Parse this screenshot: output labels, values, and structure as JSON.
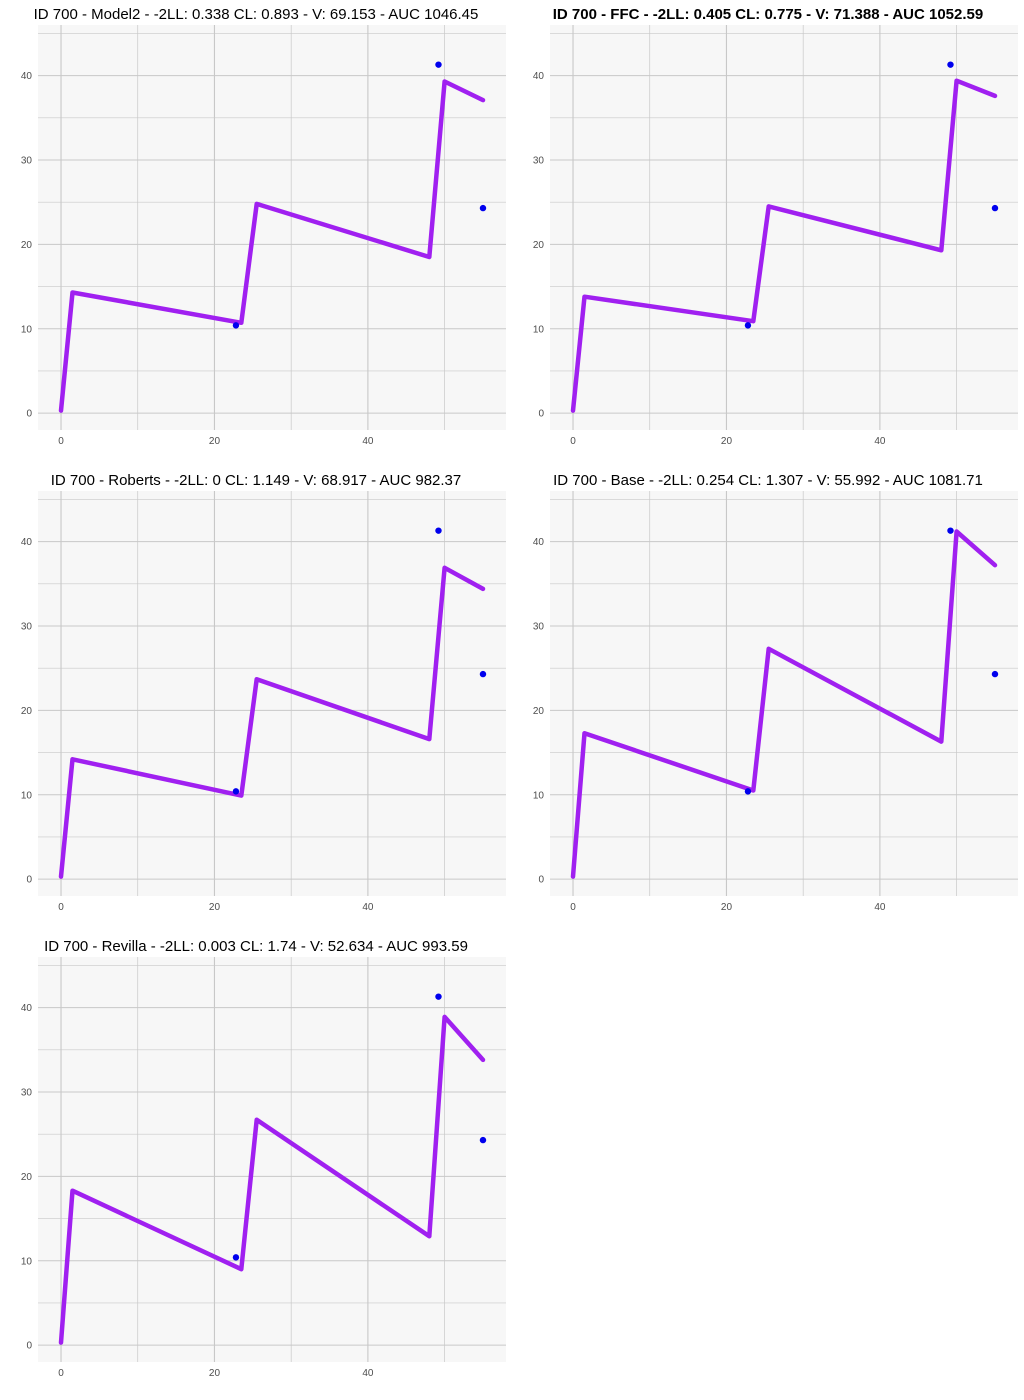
{
  "figure": {
    "background": "#ffffff",
    "panel_background": "#f7f7f7",
    "grid_color": "#c8c8c8",
    "line_color": "#a020f0",
    "point_color": "#0000ee"
  },
  "chart_data": [
    {
      "type": "line",
      "title": "ID 700 - Model2 - -2LL: 0.338 CL: 0.893 - V: 69.153 - AUC 1046.45",
      "title_bold": false,
      "xlim": [
        -3,
        58
      ],
      "ylim": [
        -2,
        46
      ],
      "x_ticks": [
        0,
        20,
        40
      ],
      "y_ticks": [
        0,
        10,
        20,
        30,
        40
      ],
      "prediction": {
        "x": [
          0,
          1.5,
          23.5,
          25.5,
          48,
          50,
          55
        ],
        "y": [
          0.3,
          14.3,
          10.7,
          24.8,
          18.5,
          39.3,
          37.1
        ]
      },
      "observations": {
        "x": [
          22.8,
          49.2,
          55
        ],
        "y": [
          10.4,
          41.3,
          24.3
        ]
      }
    },
    {
      "type": "line",
      "title": "ID 700 - FFC - -2LL: 0.405 CL: 0.775 - V: 71.388 - AUC 1052.59",
      "title_bold": true,
      "xlim": [
        -3,
        58
      ],
      "ylim": [
        -2,
        46
      ],
      "x_ticks": [
        0,
        20,
        40
      ],
      "y_ticks": [
        0,
        10,
        20,
        30,
        40
      ],
      "prediction": {
        "x": [
          0,
          1.5,
          23.5,
          25.5,
          48,
          50,
          55
        ],
        "y": [
          0.3,
          13.8,
          10.9,
          24.5,
          19.3,
          39.4,
          37.6
        ]
      },
      "observations": {
        "x": [
          22.8,
          49.2,
          55
        ],
        "y": [
          10.4,
          41.3,
          24.3
        ]
      }
    },
    {
      "type": "line",
      "title": "ID 700 - Roberts - -2LL: 0 CL: 1.149 - V: 68.917 - AUC 982.37",
      "title_bold": false,
      "xlim": [
        -3,
        58
      ],
      "ylim": [
        -2,
        46
      ],
      "x_ticks": [
        0,
        20,
        40
      ],
      "y_ticks": [
        0,
        10,
        20,
        30,
        40
      ],
      "prediction": {
        "x": [
          0,
          1.5,
          23.5,
          25.5,
          48,
          50,
          55
        ],
        "y": [
          0.3,
          14.2,
          9.9,
          23.7,
          16.6,
          36.9,
          34.4
        ]
      },
      "observations": {
        "x": [
          22.8,
          49.2,
          55
        ],
        "y": [
          10.4,
          41.3,
          24.3
        ]
      }
    },
    {
      "type": "line",
      "title": "ID 700 - Base - -2LL: 0.254 CL: 1.307 - V: 55.992 - AUC 1081.71",
      "title_bold": false,
      "xlim": [
        -3,
        58
      ],
      "ylim": [
        -2,
        46
      ],
      "x_ticks": [
        0,
        20,
        40
      ],
      "y_ticks": [
        0,
        10,
        20,
        30,
        40
      ],
      "prediction": {
        "x": [
          0,
          1.5,
          23.5,
          25.5,
          48,
          50,
          55
        ],
        "y": [
          0.3,
          17.3,
          10.5,
          27.3,
          16.3,
          41.2,
          37.2
        ]
      },
      "observations": {
        "x": [
          22.8,
          49.2,
          55
        ],
        "y": [
          10.4,
          41.3,
          24.3
        ]
      }
    },
    {
      "type": "line",
      "title": "ID 700 - Revilla - -2LL: 0.003 CL: 1.74 - V: 52.634 - AUC 993.59",
      "title_bold": false,
      "xlim": [
        -3,
        58
      ],
      "ylim": [
        -2,
        46
      ],
      "x_ticks": [
        0,
        20,
        40
      ],
      "y_ticks": [
        0,
        10,
        20,
        30,
        40
      ],
      "prediction": {
        "x": [
          0,
          1.5,
          23.5,
          25.5,
          48,
          50,
          55
        ],
        "y": [
          0.3,
          18.3,
          9.0,
          26.7,
          12.9,
          38.9,
          33.8
        ]
      },
      "observations": {
        "x": [
          22.8,
          49.2,
          55
        ],
        "y": [
          10.4,
          41.3,
          24.3
        ]
      }
    }
  ]
}
